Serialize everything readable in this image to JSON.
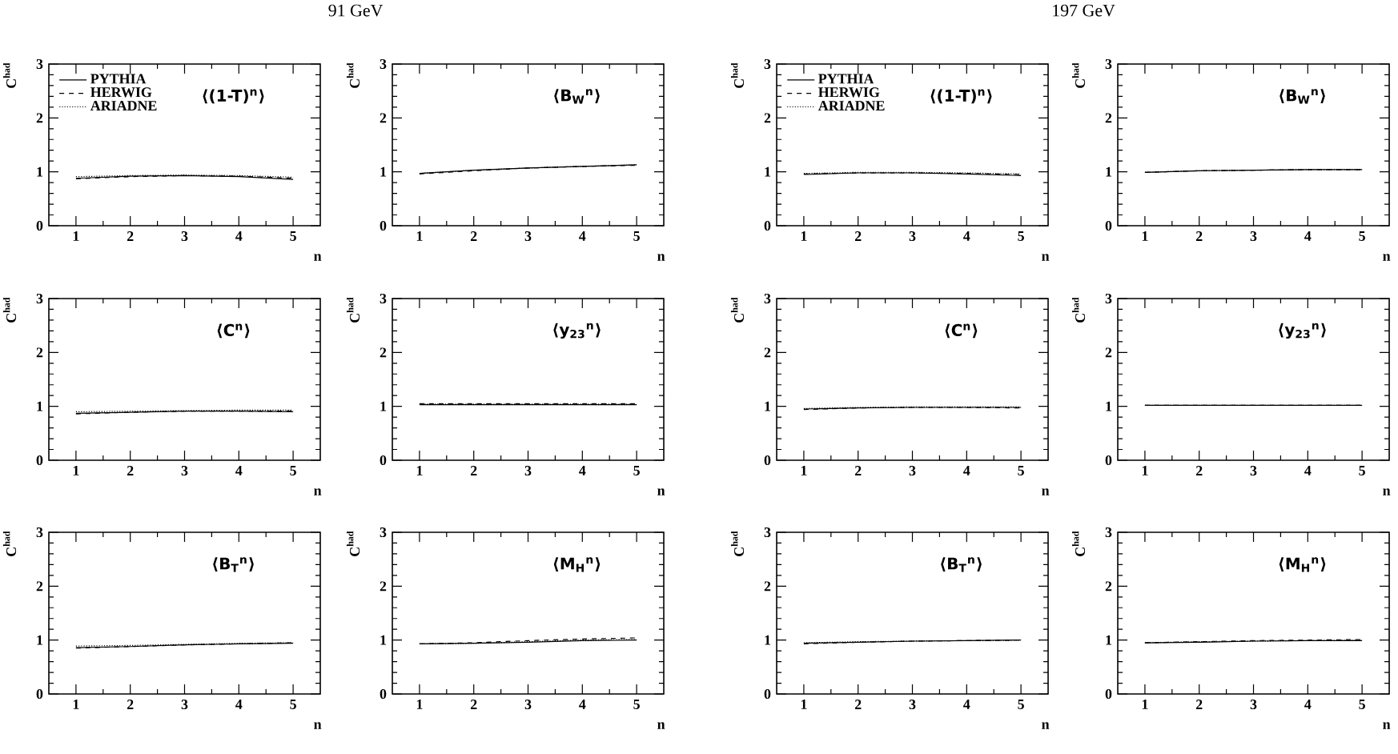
{
  "chart_data": [
    {
      "type": "line",
      "title": "91 GeV",
      "xlabel": "n",
      "ylabel": "C$^{had}$",
      "annotations": [
        "⟨(1-T)$^{n}$⟩"
      ],
      "x": [
        1,
        2,
        3,
        4,
        5
      ],
      "xlim": [
        0.5,
        5.5
      ],
      "ylim": [
        0,
        3
      ],
      "xticks": [
        1,
        2,
        3,
        4,
        5
      ],
      "yticks": [
        0,
        1,
        2,
        3
      ],
      "legend": "top left",
      "marker": "none",
      "series": [
        {
          "name": "PYTHIA",
          "color": "#000000",
          "line_style": "solid",
          "values": [
            0.88,
            0.92,
            0.93,
            0.91,
            0.86
          ]
        },
        {
          "name": "HERWIG",
          "color": "#000000",
          "line_style": "dashed",
          "values": [
            0.87,
            0.91,
            0.93,
            0.92,
            0.88
          ]
        },
        {
          "name": "ARIADNE",
          "color": "#000000",
          "line_style": "dotted",
          "values": [
            0.91,
            0.93,
            0.94,
            0.93,
            0.9
          ]
        }
      ]
    },
    {
      "type": "line",
      "xlabel": "n",
      "ylabel": "C$^{had}$",
      "annotations": [
        "⟨B$_{W}$$^{n}$⟩"
      ],
      "x": [
        1,
        2,
        3,
        4,
        5
      ],
      "xlim": [
        0.5,
        5.5
      ],
      "ylim": [
        0,
        3
      ],
      "xticks": [
        1,
        2,
        3,
        4,
        5
      ],
      "yticks": [
        0,
        1,
        2,
        3
      ],
      "marker": "none",
      "series": [
        {
          "color": "#000000",
          "line_style": "solid",
          "values": [
            0.97,
            1.03,
            1.07,
            1.1,
            1.13
          ]
        },
        {
          "color": "#000000",
          "line_style": "dashed",
          "values": [
            0.96,
            1.02,
            1.07,
            1.1,
            1.12
          ]
        },
        {
          "color": "#000000",
          "line_style": "dotted",
          "values": [
            0.97,
            1.03,
            1.07,
            1.1,
            1.13
          ]
        }
      ]
    },
    {
      "type": "line",
      "title": "197 GeV",
      "xlabel": "n",
      "ylabel": "C$^{had}$",
      "annotations": [
        "⟨(1-T)$^{n}$⟩"
      ],
      "x": [
        1,
        2,
        3,
        4,
        5
      ],
      "xlim": [
        0.5,
        5.5
      ],
      "ylim": [
        0,
        3
      ],
      "xticks": [
        1,
        2,
        3,
        4,
        5
      ],
      "yticks": [
        0,
        1,
        2,
        3
      ],
      "legend": "top left",
      "marker": "none",
      "series": [
        {
          "name": "PYTHIA",
          "color": "#000000",
          "line_style": "solid",
          "values": [
            0.95,
            0.98,
            0.98,
            0.96,
            0.93
          ]
        },
        {
          "name": "HERWIG",
          "color": "#000000",
          "line_style": "dashed",
          "values": [
            0.96,
            0.98,
            0.98,
            0.97,
            0.95
          ]
        },
        {
          "name": "ARIADNE",
          "color": "#000000",
          "line_style": "dotted",
          "values": [
            0.97,
            0.99,
            0.99,
            0.98,
            0.96
          ]
        }
      ]
    },
    {
      "type": "line",
      "xlabel": "n",
      "ylabel": "C$^{had}$",
      "annotations": [
        "⟨B$_{W}$$^{n}$⟩"
      ],
      "x": [
        1,
        2,
        3,
        4,
        5
      ],
      "xlim": [
        0.5,
        5.5
      ],
      "ylim": [
        0,
        3
      ],
      "xticks": [
        1,
        2,
        3,
        4,
        5
      ],
      "yticks": [
        0,
        1,
        2,
        3
      ],
      "marker": "none",
      "series": [
        {
          "color": "#000000",
          "line_style": "solid",
          "values": [
            0.99,
            1.02,
            1.03,
            1.04,
            1.04
          ]
        },
        {
          "color": "#000000",
          "line_style": "dashed",
          "values": [
            0.99,
            1.02,
            1.03,
            1.04,
            1.04
          ]
        },
        {
          "color": "#000000",
          "line_style": "dotted",
          "values": [
            0.99,
            1.02,
            1.03,
            1.04,
            1.04
          ]
        }
      ]
    },
    {
      "type": "line",
      "xlabel": "n",
      "ylabel": "C$^{had}$",
      "annotations": [
        "⟨C$^{n}$⟩"
      ],
      "x": [
        1,
        2,
        3,
        4,
        5
      ],
      "xlim": [
        0.5,
        5.5
      ],
      "ylim": [
        0,
        3
      ],
      "xticks": [
        1,
        2,
        3,
        4,
        5
      ],
      "yticks": [
        0,
        1,
        2,
        3
      ],
      "marker": "none",
      "series": [
        {
          "color": "#000000",
          "line_style": "solid",
          "values": [
            0.87,
            0.89,
            0.91,
            0.91,
            0.9
          ]
        },
        {
          "color": "#000000",
          "line_style": "dashed",
          "values": [
            0.86,
            0.89,
            0.91,
            0.91,
            0.91
          ]
        },
        {
          "color": "#000000",
          "line_style": "dotted",
          "values": [
            0.9,
            0.91,
            0.92,
            0.93,
            0.93
          ]
        }
      ]
    },
    {
      "type": "line",
      "xlabel": "n",
      "ylabel": "C$^{had}$",
      "annotations": [
        "⟨y$_{23}$$^{n}$⟩"
      ],
      "x": [
        1,
        2,
        3,
        4,
        5
      ],
      "xlim": [
        0.5,
        5.5
      ],
      "ylim": [
        0,
        3
      ],
      "xticks": [
        1,
        2,
        3,
        4,
        5
      ],
      "yticks": [
        0,
        1,
        2,
        3
      ],
      "marker": "none",
      "series": [
        {
          "color": "#000000",
          "line_style": "solid",
          "values": [
            1.03,
            1.03,
            1.03,
            1.03,
            1.03
          ]
        },
        {
          "color": "#000000",
          "line_style": "dashed",
          "values": [
            1.05,
            1.05,
            1.05,
            1.05,
            1.05
          ]
        },
        {
          "color": "#000000",
          "line_style": "dotted",
          "values": [
            1.04,
            1.04,
            1.04,
            1.04,
            1.04
          ]
        }
      ]
    },
    {
      "type": "line",
      "xlabel": "n",
      "ylabel": "C$^{had}$",
      "annotations": [
        "⟨C$^{n}$⟩"
      ],
      "x": [
        1,
        2,
        3,
        4,
        5
      ],
      "xlim": [
        0.5,
        5.5
      ],
      "ylim": [
        0,
        3
      ],
      "xticks": [
        1,
        2,
        3,
        4,
        5
      ],
      "yticks": [
        0,
        1,
        2,
        3
      ],
      "marker": "none",
      "series": [
        {
          "color": "#000000",
          "line_style": "solid",
          "values": [
            0.95,
            0.97,
            0.98,
            0.98,
            0.98
          ]
        },
        {
          "color": "#000000",
          "line_style": "dashed",
          "values": [
            0.94,
            0.97,
            0.98,
            0.98,
            0.97
          ]
        },
        {
          "color": "#000000",
          "line_style": "dotted",
          "values": [
            0.96,
            0.98,
            0.99,
            0.99,
            0.99
          ]
        }
      ]
    },
    {
      "type": "line",
      "xlabel": "n",
      "ylabel": "C$^{had}$",
      "annotations": [
        "⟨y$_{23}$$^{n}$⟩"
      ],
      "x": [
        1,
        2,
        3,
        4,
        5
      ],
      "xlim": [
        0.5,
        5.5
      ],
      "ylim": [
        0,
        3
      ],
      "xticks": [
        1,
        2,
        3,
        4,
        5
      ],
      "yticks": [
        0,
        1,
        2,
        3
      ],
      "marker": "none",
      "series": [
        {
          "color": "#000000",
          "line_style": "solid",
          "values": [
            1.02,
            1.02,
            1.02,
            1.02,
            1.02
          ]
        },
        {
          "color": "#000000",
          "line_style": "dashed",
          "values": [
            1.02,
            1.02,
            1.02,
            1.02,
            1.02
          ]
        },
        {
          "color": "#000000",
          "line_style": "dotted",
          "values": [
            1.02,
            1.02,
            1.02,
            1.02,
            1.02
          ]
        }
      ]
    },
    {
      "type": "line",
      "xlabel": "n",
      "ylabel": "C$^{had}$",
      "annotations": [
        "⟨B$_{T}$$^{n}$⟩"
      ],
      "x": [
        1,
        2,
        3,
        4,
        5
      ],
      "xlim": [
        0.5,
        5.5
      ],
      "ylim": [
        0,
        3
      ],
      "xticks": [
        1,
        2,
        3,
        4,
        5
      ],
      "yticks": [
        0,
        1,
        2,
        3
      ],
      "marker": "none",
      "series": [
        {
          "color": "#000000",
          "line_style": "solid",
          "values": [
            0.86,
            0.88,
            0.91,
            0.93,
            0.94
          ]
        },
        {
          "color": "#000000",
          "line_style": "dashed",
          "values": [
            0.85,
            0.88,
            0.91,
            0.93,
            0.95
          ]
        },
        {
          "color": "#000000",
          "line_style": "dotted",
          "values": [
            0.89,
            0.9,
            0.92,
            0.94,
            0.95
          ]
        }
      ]
    },
    {
      "type": "line",
      "xlabel": "n",
      "ylabel": "C$^{had}$",
      "annotations": [
        "⟨M$_{H}$$^{n}$⟩"
      ],
      "x": [
        1,
        2,
        3,
        4,
        5
      ],
      "xlim": [
        0.5,
        5.5
      ],
      "ylim": [
        0,
        3
      ],
      "xticks": [
        1,
        2,
        3,
        4,
        5
      ],
      "yticks": [
        0,
        1,
        2,
        3
      ],
      "marker": "none",
      "series": [
        {
          "color": "#000000",
          "line_style": "solid",
          "values": [
            0.93,
            0.94,
            0.96,
            0.99,
            1.0
          ]
        },
        {
          "color": "#000000",
          "line_style": "dashed",
          "values": [
            0.93,
            0.95,
            0.99,
            1.02,
            1.04
          ]
        },
        {
          "color": "#000000",
          "line_style": "dotted",
          "values": [
            0.93,
            0.94,
            0.97,
            1.0,
            1.01
          ]
        }
      ]
    },
    {
      "type": "line",
      "xlabel": "n",
      "ylabel": "C$^{had}$",
      "annotations": [
        "⟨B$_{T}$$^{n}$⟩"
      ],
      "x": [
        1,
        2,
        3,
        4,
        5
      ],
      "xlim": [
        0.5,
        5.5
      ],
      "ylim": [
        0,
        3
      ],
      "xticks": [
        1,
        2,
        3,
        4,
        5
      ],
      "yticks": [
        0,
        1,
        2,
        3
      ],
      "marker": "none",
      "series": [
        {
          "color": "#000000",
          "line_style": "solid",
          "values": [
            0.94,
            0.96,
            0.98,
            0.99,
            1.0
          ]
        },
        {
          "color": "#000000",
          "line_style": "dashed",
          "values": [
            0.93,
            0.96,
            0.98,
            0.99,
            1.0
          ]
        },
        {
          "color": "#000000",
          "line_style": "dotted",
          "values": [
            0.95,
            0.97,
            0.98,
            0.99,
            1.0
          ]
        }
      ]
    },
    {
      "type": "line",
      "xlabel": "n",
      "ylabel": "C$^{had}$",
      "annotations": [
        "⟨M$_{H}$$^{n}$⟩"
      ],
      "x": [
        1,
        2,
        3,
        4,
        5
      ],
      "xlim": [
        0.5,
        5.5
      ],
      "ylim": [
        0,
        3
      ],
      "xticks": [
        1,
        2,
        3,
        4,
        5
      ],
      "yticks": [
        0,
        1,
        2,
        3
      ],
      "marker": "none",
      "series": [
        {
          "color": "#000000",
          "line_style": "solid",
          "values": [
            0.95,
            0.96,
            0.98,
            0.99,
            0.99
          ]
        },
        {
          "color": "#000000",
          "line_style": "dashed",
          "values": [
            0.95,
            0.97,
            0.99,
            1.0,
            1.01
          ]
        },
        {
          "color": "#000000",
          "line_style": "dotted",
          "values": [
            0.95,
            0.97,
            0.98,
            0.99,
            1.0
          ]
        }
      ]
    }
  ]
}
